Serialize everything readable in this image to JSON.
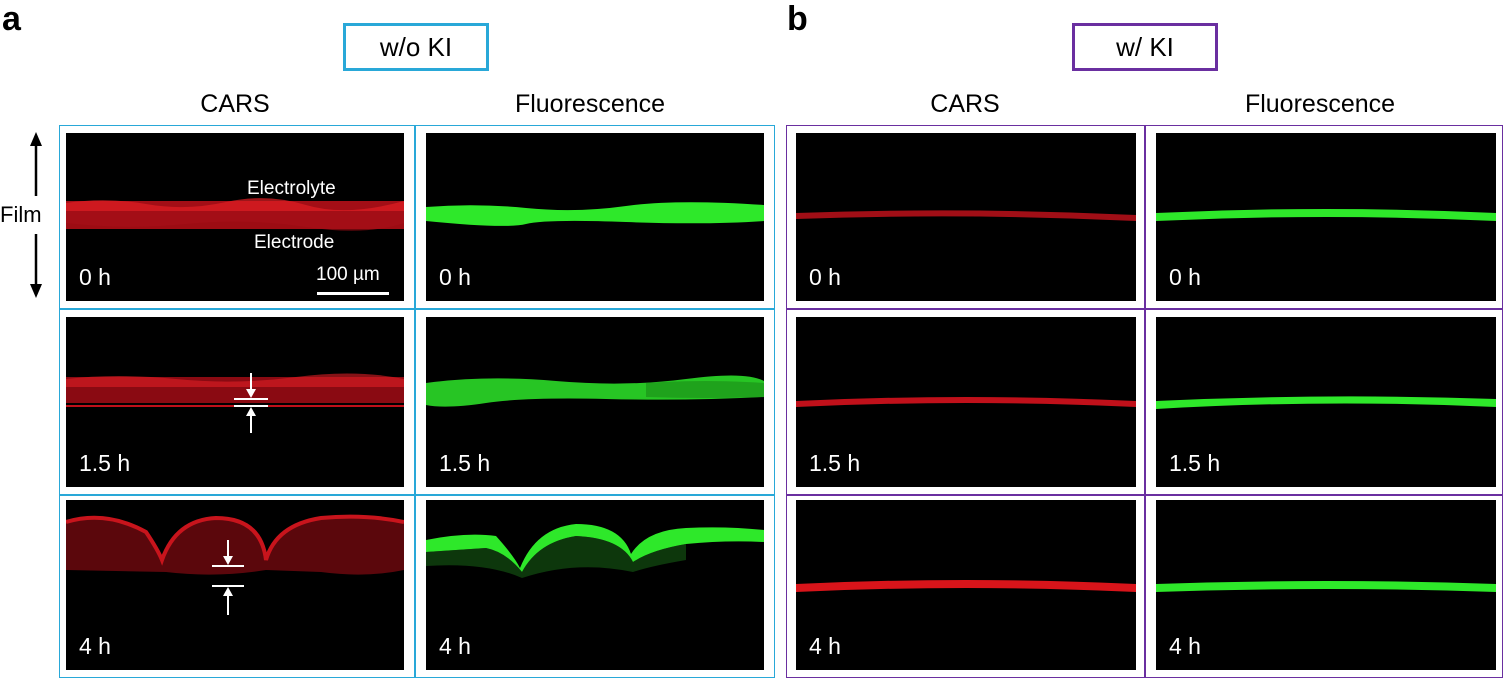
{
  "panels": {
    "a": {
      "letter": "a",
      "condition": "w/o KI",
      "condition_color": "#29a8d8",
      "col_cars": "CARS",
      "col_fluor": "Fluorescence",
      "rows": [
        {
          "time": "0 h"
        },
        {
          "time": "1.5 h"
        },
        {
          "time": "4 h"
        }
      ],
      "labels": {
        "electrolyte": "Electrolyte",
        "electrode": "Electrode",
        "scale": "100 µm"
      }
    },
    "b": {
      "letter": "b",
      "condition": "w/ KI",
      "condition_color": "#6a2fa0",
      "col_cars": "CARS",
      "col_fluor": "Fluorescence",
      "rows": [
        {
          "time": "0 h"
        },
        {
          "time": "1.5 h"
        },
        {
          "time": "4 h"
        }
      ]
    }
  },
  "axis": {
    "film": "Film"
  },
  "colors": {
    "cars": "#d8141a",
    "fluorescence": "#2ee82a"
  }
}
